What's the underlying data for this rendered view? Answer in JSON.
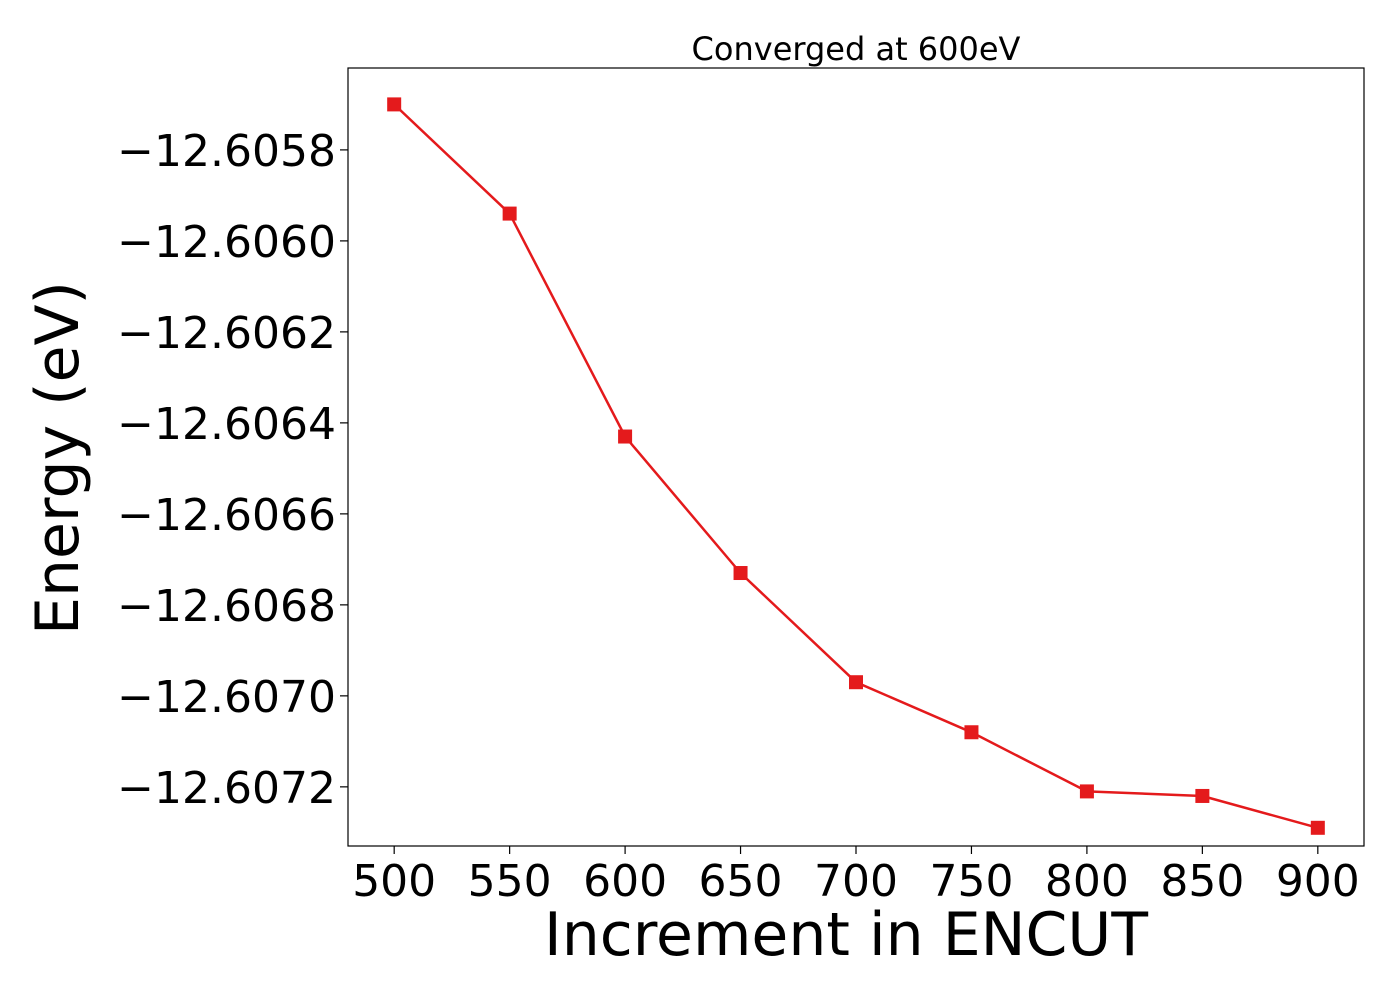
{
  "chart_data": {
    "type": "line",
    "title": "Converged at 600eV",
    "xlabel": "Increment in ENCUT",
    "ylabel": "Energy (eV)",
    "x": [
      500,
      550,
      600,
      650,
      700,
      750,
      800,
      850,
      900
    ],
    "series": [
      {
        "values": [
          -12.6057,
          -12.60594,
          -12.60643,
          -12.60673,
          -12.60697,
          -12.60708,
          -12.60721,
          -12.60722,
          -12.60729
        ],
        "color": "#e41a1c",
        "marker": "square"
      }
    ],
    "xticks": [
      500,
      550,
      600,
      650,
      700,
      750,
      800,
      850,
      900
    ],
    "xtick_labels": [
      "500",
      "550",
      "600",
      "650",
      "700",
      "750",
      "800",
      "850",
      "900"
    ],
    "yticks": [
      -12.6058,
      -12.606,
      -12.6062,
      -12.6064,
      -12.6066,
      -12.6068,
      -12.607,
      -12.6072
    ],
    "ytick_labels": [
      "−12.6058",
      "−12.6060",
      "−12.6062",
      "−12.6064",
      "−12.6066",
      "−12.6068",
      "−12.6070",
      "−12.6072"
    ],
    "xlim": [
      480,
      920
    ],
    "ylim": [
      -12.60733,
      -12.60562
    ],
    "grid": false,
    "legend": "none"
  }
}
